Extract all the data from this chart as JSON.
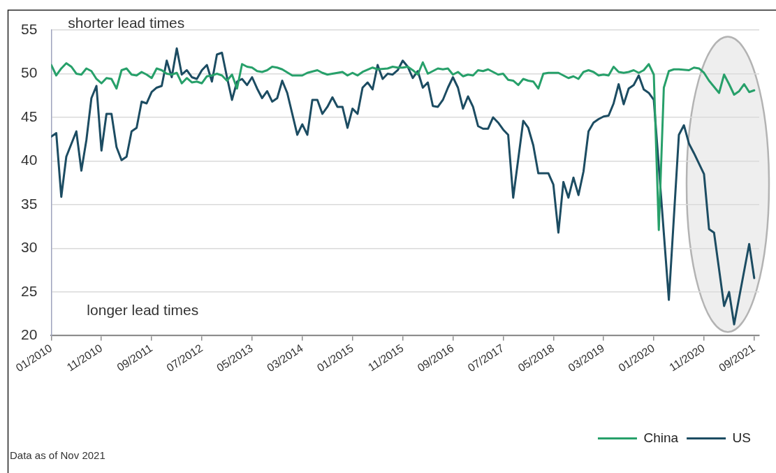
{
  "chart_data": {
    "type": "line",
    "series": [
      {
        "name": "China",
        "color": "#27a06a",
        "x": [
          "2010-01",
          "2010-02",
          "2010-03",
          "2010-04",
          "2010-05",
          "2010-06",
          "2010-07",
          "2010-08",
          "2010-09",
          "2010-10",
          "2010-11",
          "2010-12",
          "2011-01",
          "2011-02",
          "2011-03",
          "2011-04",
          "2011-05",
          "2011-06",
          "2011-07",
          "2011-08",
          "2011-09",
          "2011-10",
          "2011-11",
          "2011-12",
          "2012-01",
          "2012-02",
          "2012-03",
          "2012-04",
          "2012-05",
          "2012-06",
          "2012-07",
          "2012-08",
          "2012-09",
          "2012-10",
          "2012-11",
          "2012-12",
          "2013-01",
          "2013-02",
          "2013-03",
          "2013-04",
          "2013-05",
          "2013-06",
          "2013-07",
          "2013-08",
          "2013-09",
          "2013-10",
          "2013-11",
          "2014-01",
          "2014-02",
          "2014-03",
          "2014-04",
          "2014-06",
          "2014-07",
          "2014-08",
          "2014-09",
          "2014-11",
          "2014-12",
          "2015-01",
          "2015-02",
          "2015-03",
          "2015-05",
          "2015-06",
          "2015-08",
          "2015-09",
          "2015-10",
          "2015-11",
          "2015-12",
          "2016-01",
          "2016-02",
          "2016-03",
          "2016-04",
          "2016-05",
          "2016-06",
          "2016-07",
          "2016-08",
          "2016-09",
          "2016-10",
          "2016-11",
          "2016-12",
          "2017-01",
          "2017-02",
          "2017-03",
          "2017-04",
          "2017-05",
          "2017-06",
          "2017-07",
          "2017-08",
          "2017-09",
          "2017-10",
          "2017-11",
          "2017-12",
          "2018-01",
          "2018-02",
          "2018-03",
          "2018-04",
          "2018-05",
          "2018-06",
          "2018-07",
          "2018-08",
          "2018-09",
          "2018-10",
          "2018-11",
          "2018-12",
          "2019-01",
          "2019-02",
          "2019-03",
          "2019-04",
          "2019-05",
          "2019-06",
          "2019-07",
          "2019-08",
          "2019-09",
          "2019-10",
          "2019-11",
          "2019-12",
          "2020-01",
          "2020-02",
          "2020-03",
          "2020-04",
          "2020-05",
          "2020-06",
          "2020-08",
          "2020-09",
          "2020-10",
          "2020-11",
          "2020-12",
          "2021-02",
          "2021-03",
          "2021-04",
          "2021-05",
          "2021-06",
          "2021-07",
          "2021-08",
          "2021-09"
        ],
        "values": [
          51.0,
          49.8,
          50.6,
          51.2,
          50.8,
          50.0,
          49.9,
          50.6,
          50.3,
          49.4,
          48.9,
          49.5,
          49.4,
          48.3,
          50.4,
          50.6,
          49.9,
          49.8,
          50.2,
          49.9,
          49.5,
          50.6,
          50.4,
          50.0,
          49.9,
          50.1,
          48.9,
          49.5,
          49.0,
          49.1,
          48.9,
          49.7,
          49.8,
          50.0,
          49.8,
          49.2,
          49.9,
          48.3,
          51.1,
          50.8,
          50.7,
          50.3,
          50.2,
          50.4,
          50.8,
          50.7,
          50.5,
          49.8,
          49.8,
          49.8,
          50.1,
          50.4,
          50.1,
          49.9,
          50.0,
          50.2,
          49.8,
          50.1,
          49.8,
          50.2,
          50.7,
          50.5,
          50.6,
          50.8,
          50.7,
          50.7,
          50.8,
          50.4,
          49.9,
          51.3,
          50.0,
          50.3,
          50.6,
          50.5,
          50.6,
          49.9,
          50.2,
          49.7,
          49.9,
          49.8,
          50.4,
          50.3,
          50.5,
          50.2,
          49.9,
          50.0,
          49.3,
          49.2,
          48.7,
          49.4,
          49.2,
          49.1,
          48.3,
          50.0,
          50.1,
          50.1,
          50.1,
          49.8,
          49.5,
          49.7,
          49.4,
          50.2,
          50.4,
          50.2,
          49.8,
          49.9,
          49.8,
          50.8,
          50.2,
          50.1,
          50.2,
          50.4,
          50.1,
          50.4,
          51.1,
          49.9,
          32.1,
          48.4,
          50.3,
          50.5,
          50.5,
          50.4,
          50.7,
          50.6,
          50.1,
          49.2,
          47.8,
          49.9,
          48.8,
          47.6,
          48.0,
          48.8,
          47.9,
          48.1
        ]
      },
      {
        "name": "US",
        "color": "#1c4c62",
        "x": [
          "2010-01",
          "2010-02",
          "2010-03",
          "2010-04",
          "2010-06",
          "2010-07",
          "2010-08",
          "2010-09",
          "2010-10",
          "2010-11",
          "2010-12",
          "2011-01",
          "2011-02",
          "2011-03",
          "2011-04",
          "2011-05",
          "2011-06",
          "2011-07",
          "2011-08",
          "2011-09",
          "2011-10",
          "2011-11",
          "2011-12",
          "2012-01",
          "2012-02",
          "2012-03",
          "2012-04",
          "2012-05",
          "2012-06",
          "2012-07",
          "2012-08",
          "2012-09",
          "2012-10",
          "2012-11",
          "2012-12",
          "2013-01",
          "2013-02",
          "2013-03",
          "2013-04",
          "2013-05",
          "2013-06",
          "2013-07",
          "2013-08",
          "2013-09",
          "2013-10",
          "2013-11",
          "2013-12",
          "2014-02",
          "2014-03",
          "2014-04",
          "2014-05",
          "2014-06",
          "2014-07",
          "2014-08",
          "2014-09",
          "2014-10",
          "2014-11",
          "2014-12",
          "2015-01",
          "2015-02",
          "2015-03",
          "2015-04",
          "2015-05",
          "2015-06",
          "2015-07",
          "2015-08",
          "2015-09",
          "2015-10",
          "2015-11",
          "2015-12",
          "2016-01",
          "2016-02",
          "2016-03",
          "2016-04",
          "2016-05",
          "2016-06",
          "2016-07",
          "2016-08",
          "2016-09",
          "2016-10",
          "2016-11",
          "2016-12",
          "2017-01",
          "2017-02",
          "2017-03",
          "2017-04",
          "2017-05",
          "2017-06",
          "2017-07",
          "2017-08",
          "2017-09",
          "2017-10",
          "2017-11",
          "2017-12",
          "2018-01",
          "2018-02",
          "2018-03",
          "2018-04",
          "2018-05",
          "2018-06",
          "2018-07",
          "2018-08",
          "2018-09",
          "2018-10",
          "2018-11",
          "2018-12",
          "2019-01",
          "2019-02",
          "2019-03",
          "2019-04",
          "2019-05",
          "2019-06",
          "2019-07",
          "2019-08",
          "2019-09",
          "2019-10",
          "2019-11",
          "2019-12",
          "2020-01",
          "2020-04",
          "2020-06",
          "2020-07",
          "2020-08",
          "2020-09",
          "2020-11",
          "2020-12",
          "2021-01",
          "2021-03",
          "2021-04",
          "2021-05",
          "2021-08",
          "2021-09"
        ],
        "values": [
          42.8,
          43.2,
          35.9,
          40.5,
          43.4,
          38.9,
          42.4,
          47.2,
          48.6,
          41.2,
          45.4,
          45.4,
          41.6,
          40.1,
          40.5,
          43.4,
          43.8,
          46.8,
          46.6,
          47.9,
          48.4,
          48.6,
          51.5,
          49.6,
          52.9,
          49.9,
          50.4,
          49.6,
          49.4,
          50.4,
          51.0,
          49.1,
          52.2,
          52.4,
          49.6,
          47.0,
          49.1,
          49.4,
          48.7,
          49.6,
          48.3,
          47.2,
          48.0,
          46.8,
          47.2,
          49.2,
          47.8,
          43.0,
          44.2,
          43.0,
          47.0,
          47.0,
          45.4,
          46.2,
          47.3,
          46.2,
          46.2,
          43.8,
          46.0,
          45.4,
          48.4,
          49.0,
          48.2,
          51.0,
          49.4,
          50.0,
          49.9,
          50.4,
          51.5,
          50.8,
          49.5,
          50.3,
          48.4,
          49.0,
          46.3,
          46.2,
          47.0,
          48.4,
          49.6,
          48.4,
          46.0,
          47.4,
          46.2,
          44.0,
          43.7,
          43.7,
          45.0,
          44.4,
          43.6,
          43.0,
          35.8,
          40.2,
          44.6,
          43.8,
          41.8,
          38.6,
          38.6,
          38.6,
          37.3,
          31.8,
          37.6,
          35.8,
          38.1,
          36.1,
          38.8,
          43.4,
          44.4,
          44.8,
          45.1,
          45.2,
          46.6,
          48.8,
          46.5,
          48.3,
          48.7,
          49.8,
          48.2,
          47.8,
          47.0,
          24.1,
          43.0,
          44.1,
          42.0,
          40.9,
          38.5,
          32.2,
          31.8,
          23.4,
          25.0,
          21.3,
          30.5,
          26.6
        ]
      }
    ],
    "xlim": [
      "2010-01",
      "2021-10"
    ],
    "xticks": [
      {
        "value": "2010-01",
        "label": "01/2010"
      },
      {
        "value": "2010-11",
        "label": "11/2010"
      },
      {
        "value": "2011-09",
        "label": "09/2011"
      },
      {
        "value": "2012-07",
        "label": "07/2012"
      },
      {
        "value": "2013-05",
        "label": "05/2013"
      },
      {
        "value": "2014-03",
        "label": "03/2014"
      },
      {
        "value": "2015-01",
        "label": "01/2015"
      },
      {
        "value": "2015-11",
        "label": "11/2015"
      },
      {
        "value": "2016-09",
        "label": "09/2016"
      },
      {
        "value": "2017-07",
        "label": "07/2017"
      },
      {
        "value": "2018-05",
        "label": "05/2018"
      },
      {
        "value": "2019-03",
        "label": "03/2019"
      },
      {
        "value": "2020-01",
        "label": "01/2020"
      },
      {
        "value": "2020-11",
        "label": "11/2020"
      },
      {
        "value": "2021-09",
        "label": "09/2021"
      }
    ],
    "ylim": [
      20,
      55
    ],
    "yticks": [
      20,
      25,
      30,
      35,
      40,
      45,
      50,
      55
    ],
    "grid": "y",
    "legend": "bottom right",
    "annotations": [
      "shorter lead times",
      "longer lead times",
      "Data as of Nov 2021"
    ]
  }
}
